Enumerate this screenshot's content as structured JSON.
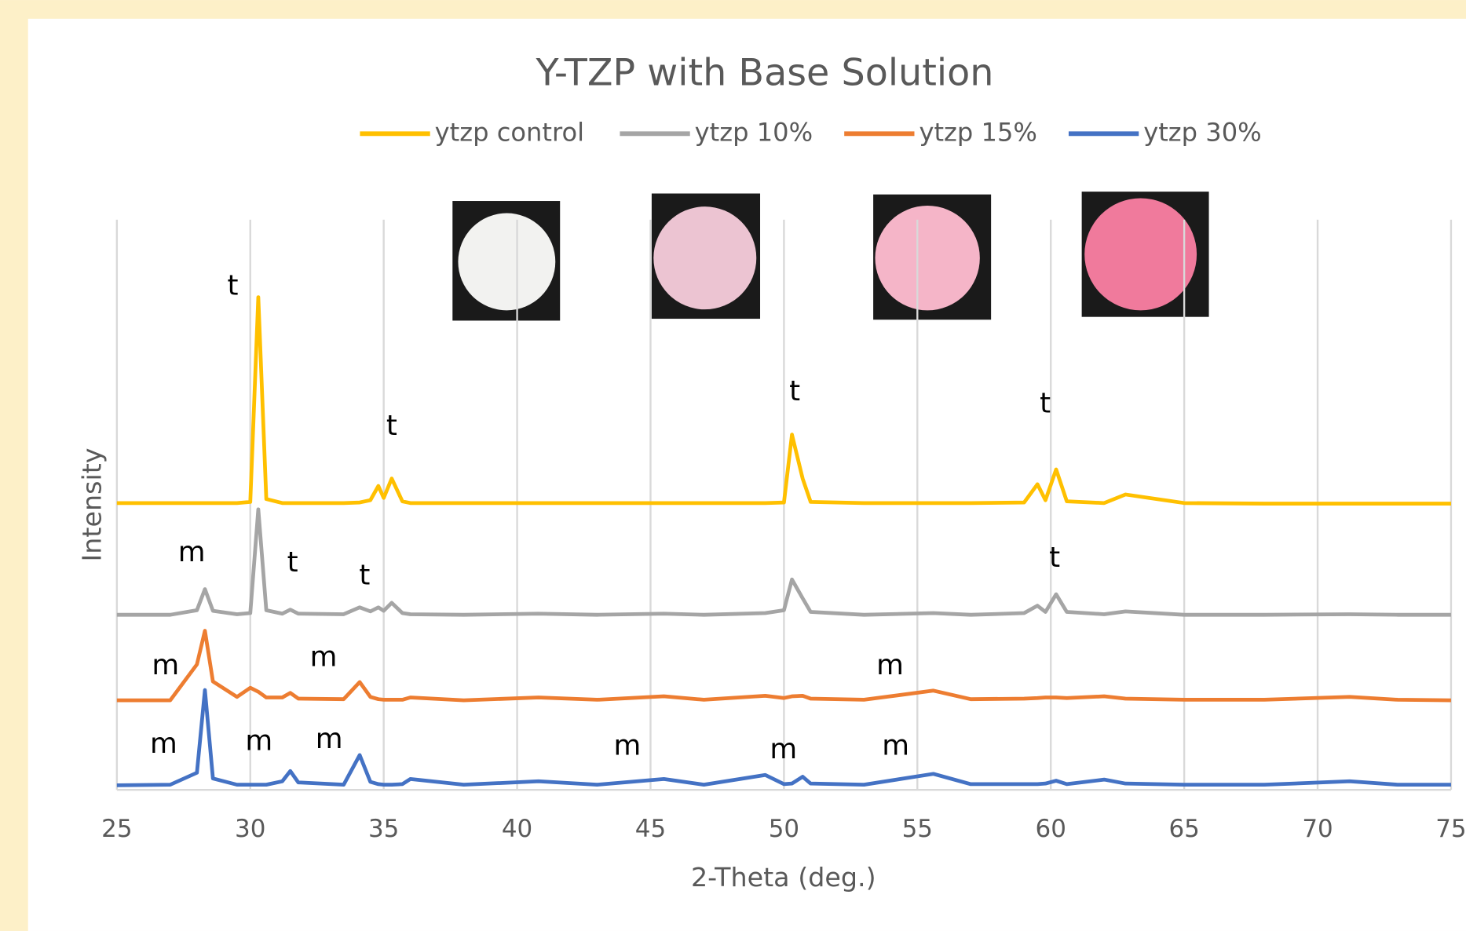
{
  "chart_data": {
    "type": "line",
    "title": "Y-TZP with Base Solution",
    "x_label": "2-Theta (deg.)",
    "y_label": "Intensity",
    "x": [
      25,
      27,
      28.0,
      28.3,
      28.6,
      29.5,
      30.0,
      30.3,
      30.6,
      31.2,
      31.5,
      31.8,
      33.5,
      34.1,
      34.5,
      34.8,
      35.0,
      35.3,
      35.7,
      36.0,
      38,
      40.8,
      43,
      45.5,
      47,
      49.3,
      50.0,
      50.3,
      50.7,
      51.0,
      53,
      55.6,
      57,
      59.0,
      59.5,
      59.8,
      60.2,
      60.6,
      62.0,
      62.8,
      65,
      68,
      71.2,
      73,
      75
    ],
    "series": [
      {
        "name": "ytzp control",
        "color": "#ffc000",
        "values": [
          50.3,
          50.3,
          50.3,
          50.3,
          50.3,
          50.3,
          50.5,
          86.4,
          51,
          50.3,
          50.3,
          50.3,
          50.3,
          50.4,
          50.8,
          53.3,
          51.2,
          54.6,
          50.6,
          50.3,
          50.3,
          50.3,
          50.3,
          50.3,
          50.3,
          50.3,
          50.4,
          62.3,
          54.6,
          50.5,
          50.3,
          50.3,
          50.3,
          50.4,
          53.6,
          50.8,
          56.2,
          50.6,
          50.3,
          51.8,
          50.3,
          50.2,
          50.2,
          50.2,
          50.2
        ]
      },
      {
        "name": "ytzp 10%",
        "color": "#a5a5a5",
        "values": [
          30.7,
          30.7,
          31.5,
          35.2,
          31.4,
          30.8,
          31,
          49.2,
          31.5,
          30.9,
          31.6,
          30.9,
          30.8,
          32,
          31.3,
          32,
          31.4,
          32.8,
          31,
          30.8,
          30.7,
          30.9,
          30.7,
          30.9,
          30.7,
          31,
          31.5,
          36.9,
          33.6,
          31.2,
          30.7,
          31,
          30.7,
          31,
          32.3,
          31.2,
          34.3,
          31.2,
          30.8,
          31.3,
          30.7,
          30.7,
          30.8,
          30.7,
          30.7
        ]
      },
      {
        "name": "ytzp 15%",
        "color": "#ed7d31",
        "values": [
          15.7,
          15.7,
          22,
          27.9,
          19,
          16.3,
          17.9,
          17.2,
          16.2,
          16.2,
          17,
          16,
          15.9,
          18.9,
          16.3,
          15.9,
          15.8,
          15.8,
          15.8,
          16.2,
          15.7,
          16.2,
          15.8,
          16.4,
          15.8,
          16.5,
          16.1,
          16.4,
          16.5,
          16,
          15.8,
          17.4,
          15.9,
          16,
          16.1,
          16.2,
          16.2,
          16.1,
          16.4,
          16,
          15.8,
          15.8,
          16.3,
          15.8,
          15.7
        ]
      },
      {
        "name": "ytzp 30%",
        "color": "#4472c4",
        "values": [
          0.8,
          0.9,
          3,
          17.5,
          2,
          0.9,
          0.9,
          0.9,
          0.9,
          1.5,
          3.3,
          1.3,
          0.9,
          6.1,
          1.4,
          1,
          0.9,
          0.9,
          1,
          1.9,
          0.9,
          1.5,
          0.9,
          1.9,
          0.9,
          2.6,
          1,
          1.1,
          2.3,
          1.1,
          0.9,
          2.8,
          1,
          1,
          1,
          1.1,
          1.6,
          1,
          1.8,
          1.1,
          0.9,
          0.9,
          1.5,
          0.9,
          0.9
        ]
      }
    ],
    "xlim": [
      25,
      75
    ],
    "xticks": [
      25,
      30,
      35,
      40,
      45,
      50,
      55,
      60,
      65,
      70,
      75
    ],
    "ylim": [
      0,
      100
    ],
    "grid": true,
    "legend": "top",
    "annotations": [
      "t",
      "t",
      "t",
      "t",
      "m",
      "t",
      "t",
      "t",
      "m",
      "m",
      "m",
      "m",
      "m",
      "m",
      "m",
      "m",
      "m"
    ]
  }
}
